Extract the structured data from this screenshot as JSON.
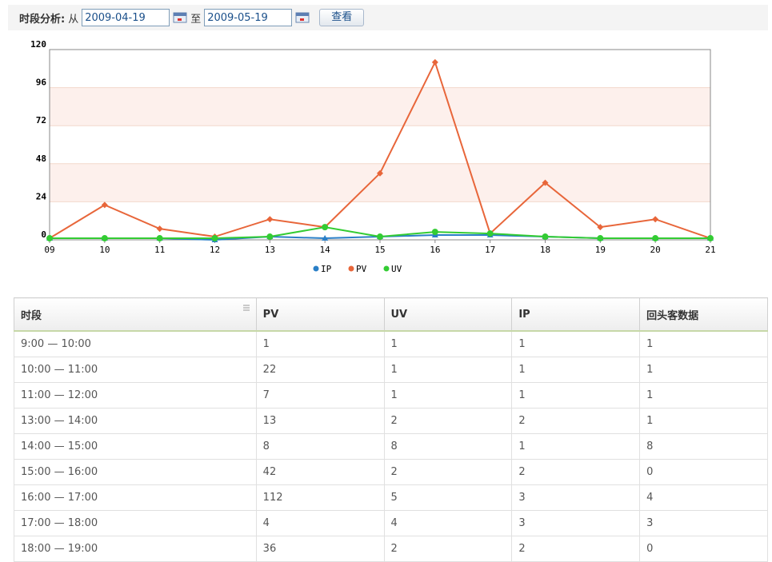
{
  "toolbar": {
    "label": "时段分析:",
    "from": "从",
    "start_date": "2009-04-19",
    "to": "至",
    "end_date": "2009-05-19",
    "button": "查看"
  },
  "chart_data": {
    "type": "line",
    "categories": [
      "09",
      "10",
      "11",
      "12",
      "13",
      "14",
      "15",
      "16",
      "17",
      "18",
      "19",
      "20",
      "21"
    ],
    "series": [
      {
        "name": "IP",
        "color": "#2a7fc7",
        "values": [
          1,
          1,
          1,
          0,
          2,
          1,
          2,
          3,
          3,
          2,
          1,
          1,
          1
        ]
      },
      {
        "name": "PV",
        "color": "#e8663a",
        "values": [
          1,
          22,
          7,
          2,
          13,
          8,
          42,
          112,
          4,
          36,
          8,
          13,
          1
        ]
      },
      {
        "name": "UV",
        "color": "#33cc33",
        "values": [
          1,
          1,
          1,
          1,
          2,
          8,
          2,
          5,
          4,
          2,
          1,
          1,
          1
        ]
      }
    ],
    "ylim": [
      0,
      120
    ],
    "yticks": [
      0,
      24,
      48,
      72,
      96,
      120
    ],
    "grid": true,
    "legend": "bottom"
  },
  "table": {
    "columns": [
      "时段",
      "PV",
      "UV",
      "IP",
      "回头客数据"
    ],
    "rows": [
      [
        "9:00 — 10:00",
        1,
        1,
        1,
        1
      ],
      [
        "10:00 — 11:00",
        22,
        1,
        1,
        1
      ],
      [
        "11:00 — 12:00",
        7,
        1,
        1,
        1
      ],
      [
        "13:00 — 14:00",
        13,
        2,
        2,
        1
      ],
      [
        "14:00 — 15:00",
        8,
        8,
        1,
        8
      ],
      [
        "15:00 — 16:00",
        42,
        2,
        2,
        0
      ],
      [
        "16:00 — 17:00",
        112,
        5,
        3,
        4
      ],
      [
        "17:00 — 18:00",
        4,
        4,
        3,
        3
      ],
      [
        "18:00 — 19:00",
        36,
        2,
        2,
        0
      ]
    ]
  }
}
